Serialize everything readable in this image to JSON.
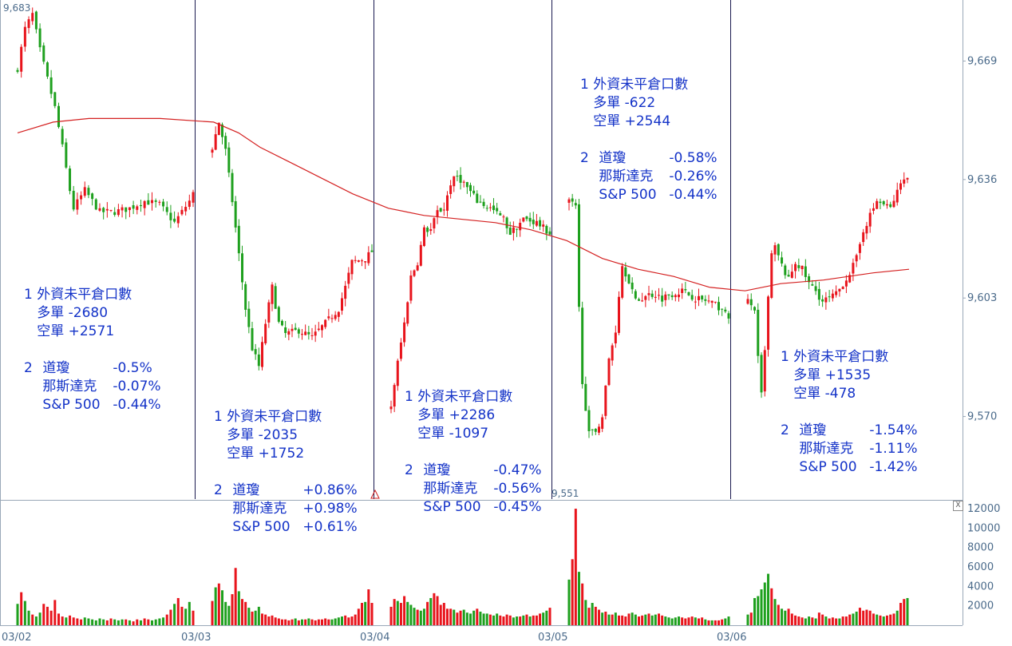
{
  "chart_data": {
    "type": "candlestick",
    "price_axis": {
      "ticks": [
        9669,
        9636,
        9603,
        9570
      ],
      "range": [
        9547,
        9686
      ]
    },
    "volume_axis": {
      "ticks": [
        2000,
        4000,
        6000,
        8000,
        10000,
        12000
      ],
      "range": [
        0,
        12500
      ]
    },
    "x_axis": {
      "dates": [
        "03/02",
        "03/03",
        "03/04",
        "03/05",
        "03/06"
      ]
    },
    "extremes": {
      "high_label": "9,683",
      "low_label": "9,551"
    },
    "colors": {
      "up": "#e8141c",
      "down": "#1ea01e",
      "ma": "#d42020",
      "divider": "#1a1a50",
      "axis_text": "#4a6a8a",
      "annotation": "#1433c8"
    },
    "moving_average": [
      [
        0,
        9649
      ],
      [
        10,
        9652
      ],
      [
        20,
        9653
      ],
      [
        40,
        9653
      ],
      [
        55,
        9652
      ],
      [
        62,
        9649
      ],
      [
        68,
        9645
      ],
      [
        76,
        9641
      ],
      [
        84,
        9637
      ],
      [
        94,
        9632
      ],
      [
        104,
        9628
      ],
      [
        114,
        9626
      ],
      [
        124,
        9625
      ],
      [
        134,
        9624
      ],
      [
        144,
        9622
      ],
      [
        154,
        9619
      ],
      [
        164,
        9614
      ],
      [
        174,
        9611
      ],
      [
        184,
        9609
      ],
      [
        194,
        9606
      ],
      [
        204,
        9605
      ],
      [
        214,
        9607
      ],
      [
        226,
        9608
      ],
      [
        240,
        9610
      ],
      [
        250,
        9611
      ]
    ],
    "days": [
      {
        "date": "03/02",
        "bars": 48,
        "pts": [
          [
            0,
            9667
          ],
          [
            2,
            9678
          ],
          [
            4,
            9682
          ],
          [
            6,
            9672
          ],
          [
            8,
            9664
          ],
          [
            10,
            9656
          ],
          [
            12,
            9645
          ],
          [
            14,
            9633
          ],
          [
            15,
            9628
          ],
          [
            18,
            9633
          ],
          [
            22,
            9627
          ],
          [
            26,
            9627
          ],
          [
            30,
            9628
          ],
          [
            34,
            9630
          ],
          [
            38,
            9629
          ],
          [
            42,
            9624
          ],
          [
            46,
            9630
          ],
          [
            47,
            9632
          ]
        ]
      },
      {
        "date": "03/03",
        "bars": 49,
        "pts": [
          [
            0,
            9645
          ],
          [
            2,
            9652
          ],
          [
            4,
            9644
          ],
          [
            6,
            9630
          ],
          [
            8,
            9615
          ],
          [
            10,
            9600
          ],
          [
            12,
            9589
          ],
          [
            14,
            9584
          ],
          [
            16,
            9596
          ],
          [
            18,
            9606
          ],
          [
            20,
            9596
          ],
          [
            22,
            9593
          ],
          [
            26,
            9594
          ],
          [
            30,
            9592
          ],
          [
            34,
            9596
          ],
          [
            38,
            9600
          ],
          [
            40,
            9606
          ],
          [
            42,
            9613
          ],
          [
            46,
            9614
          ],
          [
            48,
            9616
          ]
        ]
      },
      {
        "date": "03/04",
        "bars": 49,
        "pts": [
          [
            0,
            9573
          ],
          [
            2,
            9585
          ],
          [
            4,
            9596
          ],
          [
            6,
            9609
          ],
          [
            8,
            9613
          ],
          [
            10,
            9622
          ],
          [
            12,
            9622
          ],
          [
            14,
            9627
          ],
          [
            16,
            9628
          ],
          [
            18,
            9635
          ],
          [
            20,
            9637
          ],
          [
            22,
            9635
          ],
          [
            26,
            9630
          ],
          [
            30,
            9628
          ],
          [
            34,
            9625
          ],
          [
            36,
            9621
          ],
          [
            40,
            9625
          ],
          [
            44,
            9624
          ],
          [
            48,
            9621
          ]
        ]
      },
      {
        "date": "03/05",
        "bars": 49,
        "pts": [
          [
            0,
            9630
          ],
          [
            2,
            9628
          ],
          [
            3,
            9600
          ],
          [
            4,
            9580
          ],
          [
            6,
            9565
          ],
          [
            8,
            9566
          ],
          [
            10,
            9570
          ],
          [
            12,
            9586
          ],
          [
            14,
            9594
          ],
          [
            15,
            9604
          ],
          [
            16,
            9612
          ],
          [
            18,
            9608
          ],
          [
            20,
            9602
          ],
          [
            22,
            9603
          ],
          [
            24,
            9604
          ],
          [
            26,
            9604
          ],
          [
            28,
            9603
          ],
          [
            30,
            9604
          ],
          [
            34,
            9605
          ],
          [
            38,
            9603
          ],
          [
            42,
            9602
          ],
          [
            46,
            9600
          ],
          [
            48,
            9597
          ]
        ]
      },
      {
        "date": "03/06",
        "bars": 48,
        "pts": [
          [
            0,
            9602
          ],
          [
            2,
            9600
          ],
          [
            3,
            9586
          ],
          [
            4,
            9576
          ],
          [
            5,
            9588
          ],
          [
            6,
            9603
          ],
          [
            7,
            9615
          ],
          [
            8,
            9617
          ],
          [
            10,
            9612
          ],
          [
            12,
            9608
          ],
          [
            14,
            9613
          ],
          [
            16,
            9611
          ],
          [
            18,
            9607
          ],
          [
            20,
            9605
          ],
          [
            22,
            9602
          ],
          [
            26,
            9604
          ],
          [
            30,
            9610
          ],
          [
            32,
            9614
          ],
          [
            34,
            9622
          ],
          [
            38,
            9630
          ],
          [
            42,
            9628
          ],
          [
            46,
            9637
          ],
          [
            47,
            9636
          ]
        ]
      }
    ],
    "volume_profile": [
      [
        2200,
        3400,
        2500,
        1500,
        1100,
        900,
        1300,
        2200,
        1900,
        1500,
        2600,
        1200,
        900,
        800,
        1000,
        800,
        700,
        600,
        800,
        700,
        600,
        500,
        700,
        600,
        500,
        700,
        600,
        500,
        600,
        600,
        500,
        400,
        600,
        500,
        700,
        600,
        500,
        600,
        700,
        800,
        1100,
        1600,
        2200,
        2800,
        1900,
        1700,
        2400,
        1500
      ],
      [
        2500,
        3900,
        4300,
        3600,
        2400,
        2000,
        3200,
        5900,
        3500,
        2700,
        2400,
        1800,
        1400,
        1500,
        1900,
        1200,
        1100,
        900,
        1000,
        800,
        700,
        600,
        600,
        500,
        600,
        700,
        500,
        600,
        600,
        700,
        600,
        500,
        600,
        600,
        700,
        600,
        600,
        700,
        800,
        900,
        1000,
        800,
        900,
        1100,
        1700,
        2300,
        2400,
        3700,
        2300
      ],
      [
        1900,
        2700,
        2500,
        2300,
        3000,
        2400,
        2100,
        1800,
        1600,
        1500,
        1700,
        2400,
        2800,
        3300,
        3000,
        2100,
        2300,
        1700,
        1700,
        1600,
        1300,
        1500,
        1600,
        1300,
        1200,
        1500,
        1700,
        1400,
        1200,
        1200,
        1100,
        1000,
        1200,
        1000,
        900,
        1100,
        1000,
        800,
        900,
        900,
        1000,
        1100,
        900,
        1000,
        1000,
        1200,
        1300,
        1500,
        1800
      ],
      [
        4700,
        6800,
        12000,
        5500,
        4300,
        2600,
        1800,
        2300,
        1900,
        1600,
        1300,
        1400,
        1100,
        1100,
        1300,
        1000,
        1000,
        900,
        1200,
        1300,
        1100,
        900,
        1000,
        1100,
        1200,
        1000,
        1100,
        1200,
        1000,
        900,
        800,
        700,
        800,
        900,
        800,
        700,
        800,
        900,
        800,
        700,
        800,
        600,
        500,
        500,
        500,
        500,
        600,
        700,
        900
      ],
      [
        1100,
        1300,
        2800,
        3000,
        3700,
        4400,
        5300,
        3800,
        2700,
        2100,
        1700,
        1500,
        1700,
        1200,
        1000,
        900,
        800,
        700,
        900,
        800,
        700,
        1300,
        1100,
        900,
        700,
        800,
        700,
        700,
        900,
        900,
        1100,
        1200,
        1400,
        1800,
        1500,
        1600,
        1500,
        1200,
        1100,
        1000,
        900,
        1000,
        1100,
        1200,
        1500,
        2300,
        2700,
        2800
      ]
    ]
  },
  "annotations": [
    {
      "heading": "1 外資未平倉口數",
      "long_label": "多單",
      "long_value": "-2680",
      "short_label": "空單",
      "short_value": "+2571",
      "idx2": "2",
      "dow_label": "道瓊",
      "dow_value": "-0.5%",
      "nasdaq_label": "那斯達克",
      "nasdaq_value": "-0.07%",
      "sp_label": "S&P 500",
      "sp_value": "-0.44%"
    },
    {
      "heading": "1 外資未平倉口數",
      "long_label": "多單",
      "long_value": "-2035",
      "short_label": "空單",
      "short_value": "+1752",
      "idx2": "2",
      "dow_label": "道瓊",
      "dow_value": "+0.86%",
      "nasdaq_label": "那斯達克",
      "nasdaq_value": "+0.98%",
      "sp_label": "S&P 500",
      "sp_value": "+0.61%"
    },
    {
      "heading": "1 外資未平倉口數",
      "long_label": "多單",
      "long_value": "+2286",
      "short_label": "空單",
      "short_value": "-1097",
      "idx2": "2",
      "dow_label": "道瓊",
      "dow_value": "-0.47%",
      "nasdaq_label": "那斯達克",
      "nasdaq_value": "-0.56%",
      "sp_label": "S&P 500",
      "sp_value": "-0.45%"
    },
    {
      "heading": "1 外資未平倉口數",
      "long_label": "多單",
      "long_value": "-622",
      "short_label": "空單",
      "short_value": "+2544",
      "idx2": "2",
      "dow_label": "道瓊",
      "dow_value": "-0.58%",
      "nasdaq_label": "那斯達克",
      "nasdaq_value": "-0.26%",
      "sp_label": "S&P 500",
      "sp_value": "-0.44%"
    },
    {
      "heading": "1 外資未平倉口數",
      "long_label": "多單",
      "long_value": "+1535",
      "short_label": "空單",
      "short_value": "-478",
      "idx2": "2",
      "dow_label": "道瓊",
      "dow_value": "-1.54%",
      "nasdaq_label": "那斯達克",
      "nasdaq_value": "-1.11%",
      "sp_label": "S&P 500",
      "sp_value": "-1.42%"
    }
  ],
  "controls": {
    "close_glyph": "X"
  }
}
